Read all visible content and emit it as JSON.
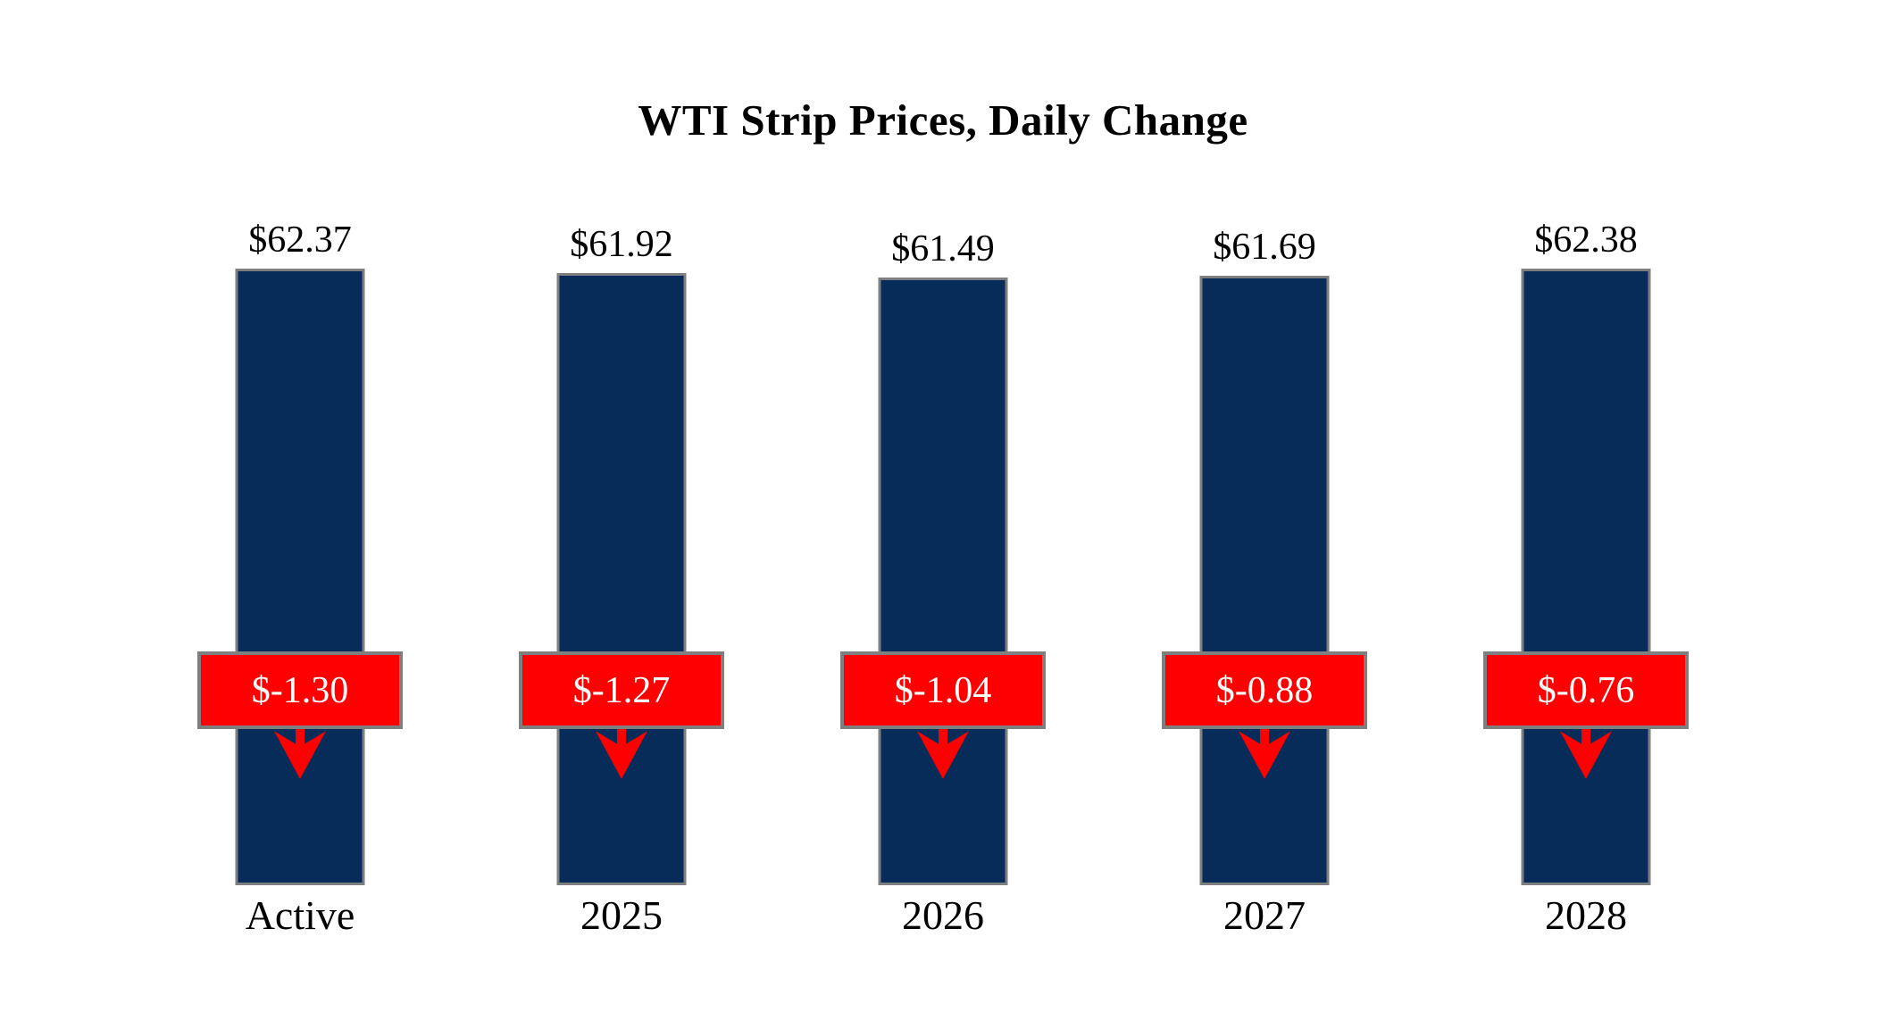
{
  "title": "WTI Strip Prices, Daily Change",
  "colors": {
    "bar_fill": "#082C5A",
    "bar_border": "#7F7F7F",
    "change_fill": "#FF0000",
    "change_border": "#7F7F7F",
    "change_text": "#FFFFFF",
    "text": "#000000",
    "background": "#FFFFFF"
  },
  "chart_data": {
    "type": "bar",
    "title": "WTI Strip Prices, Daily Change",
    "categories": [
      "Active",
      "2025",
      "2026",
      "2027",
      "2028"
    ],
    "series": [
      {
        "name": "Strip Price",
        "values": [
          62.37,
          61.92,
          61.49,
          61.69,
          62.38
        ]
      },
      {
        "name": "Daily Change",
        "values": [
          -1.3,
          -1.27,
          -1.04,
          -0.88,
          -0.76
        ]
      }
    ],
    "price_labels": [
      "$62.37",
      "$61.92",
      "$61.49",
      "$61.69",
      "$62.38"
    ],
    "change_labels": [
      "$-1.30",
      "$-1.27",
      "$-1.04",
      "$-0.88",
      "$-0.76"
    ],
    "ylim": [
      0,
      62.38
    ],
    "grid": false,
    "legend": "none",
    "xlabel": "",
    "ylabel": ""
  }
}
